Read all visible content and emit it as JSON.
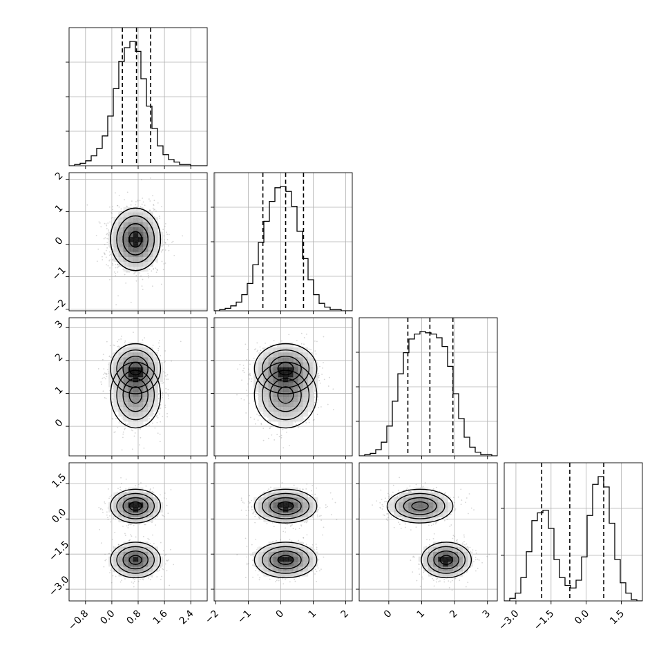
{
  "chart_data": {
    "type": "corner",
    "variables": 4,
    "title": "",
    "axis_labels": [
      "",
      "",
      "",
      ""
    ],
    "grid": true,
    "colors": {
      "line": "#000000",
      "grid": "#b0b0b0",
      "points": "#888888",
      "density_dark": "#000000"
    },
    "ranges": [
      [
        -1.3,
        2.9
      ],
      [
        -2.05,
        2.2
      ],
      [
        -0.9,
        3.3
      ],
      [
        -3.5,
        2.4
      ]
    ],
    "x_ticks": [
      [
        -0.8,
        0.0,
        0.8,
        1.6,
        2.4
      ],
      [
        -2,
        -1,
        0,
        1,
        2
      ],
      [
        0,
        1,
        2,
        3
      ],
      [
        -3.0,
        -1.5,
        0.0,
        1.5
      ]
    ],
    "x_tick_labels": [
      [
        "−0.8",
        "0.0",
        "0.8",
        "1.6",
        "2.4"
      ],
      [
        "−2",
        "−1",
        "0",
        "1",
        "2"
      ],
      [
        "0",
        "1",
        "2",
        "3"
      ],
      [
        "−3.0",
        "−1.5",
        "0.0",
        "1.5"
      ]
    ],
    "y_ticks": [
      [],
      [
        -2,
        -1,
        0,
        1,
        2
      ],
      [
        0,
        1,
        2,
        3
      ],
      [
        -3.0,
        -1.5,
        0.0,
        1.5
      ]
    ],
    "y_tick_labels": [
      [],
      [
        "−2",
        "−1",
        "0",
        "1",
        "2"
      ],
      [
        "0",
        "1",
        "2",
        "3"
      ],
      [
        "−3.0",
        "−1.5",
        "0.0",
        "1.5"
      ]
    ],
    "hist_ticks": [
      [
        0.25,
        0.5,
        0.75
      ],
      [
        0.25,
        0.5,
        0.75
      ],
      [
        0.25,
        0.5,
        0.75
      ],
      [
        0.33,
        0.67
      ]
    ],
    "quantiles": [
      [
        0.32,
        0.75,
        1.18
      ],
      [
        -0.55,
        0.15,
        0.7
      ],
      [
        0.58,
        1.25,
        1.95
      ],
      [
        -1.9,
        -0.7,
        0.75
      ]
    ],
    "histograms": [
      {
        "edges_range": [
          -1.3,
          2.9
        ],
        "counts": [
          0,
          1,
          2,
          4,
          8,
          14,
          24,
          40,
          62,
          84,
          95,
          100,
          92,
          70,
          48,
          30,
          16,
          9,
          5,
          3,
          1,
          1,
          0,
          0,
          0
        ]
      },
      {
        "edges_range": [
          -2.05,
          2.2
        ],
        "counts": [
          0,
          1,
          2,
          4,
          7,
          13,
          22,
          37,
          55,
          72,
          88,
          99,
          100,
          96,
          84,
          64,
          42,
          25,
          13,
          6,
          3,
          1,
          1,
          0,
          0
        ]
      },
      {
        "edges_range": [
          -0.9,
          3.3
        ],
        "counts": [
          0,
          1,
          2,
          5,
          11,
          24,
          44,
          66,
          83,
          94,
          98,
          100,
          99,
          98,
          95,
          88,
          72,
          50,
          30,
          15,
          7,
          3,
          1,
          1,
          0
        ]
      },
      {
        "edges_range": [
          -3.5,
          2.4
        ],
        "counts": [
          0,
          2,
          6,
          18,
          38,
          62,
          68,
          70,
          56,
          32,
          18,
          12,
          10,
          16,
          34,
          66,
          90,
          96,
          88,
          60,
          32,
          14,
          6,
          1,
          0
        ]
      }
    ],
    "components": [
      {
        "mean": [
          0.72,
          0.15,
          0.95,
          0.55
        ],
        "std": [
          0.38,
          0.48,
          0.5,
          0.36
        ],
        "weight": 0.5
      },
      {
        "mean": [
          0.72,
          0.15,
          1.75,
          -1.75
        ],
        "std": [
          0.38,
          0.48,
          0.38,
          0.38
        ],
        "weight": 0.5
      }
    ]
  }
}
